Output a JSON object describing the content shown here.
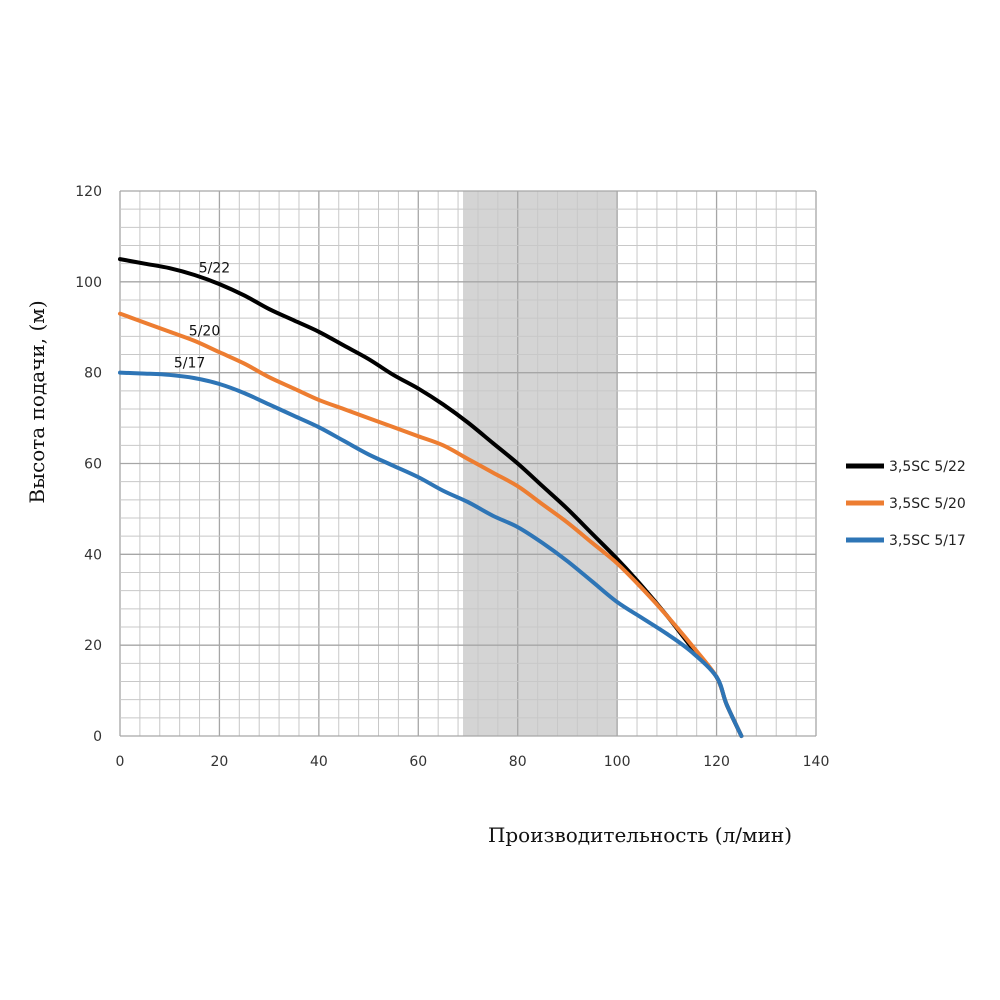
{
  "chart_data": {
    "type": "line",
    "xlabel": "Производительность (л/мин)",
    "ylabel": "Высота подачи, (м)",
    "xlim": [
      0,
      140
    ],
    "ylim": [
      0,
      120
    ],
    "x_major_step": 20,
    "y_major_step": 20,
    "x_minor_step": 4,
    "y_minor_step": 4,
    "xticks": [
      "0",
      "20",
      "40",
      "60",
      "80",
      "100",
      "120",
      "140"
    ],
    "yticks": [
      "0",
      "20",
      "40",
      "60",
      "80",
      "100",
      "120"
    ],
    "grid": true,
    "legend_position": "right",
    "highlight_band": [
      69,
      100
    ],
    "series": [
      {
        "name": "3,5SC 5/22",
        "label": "5/22",
        "color": "#000000",
        "points": [
          [
            0,
            105
          ],
          [
            5,
            104
          ],
          [
            10,
            103
          ],
          [
            15,
            101.5
          ],
          [
            20,
            99.5
          ],
          [
            25,
            97
          ],
          [
            30,
            94
          ],
          [
            35,
            91.5
          ],
          [
            40,
            89
          ],
          [
            45,
            86
          ],
          [
            50,
            83
          ],
          [
            55,
            79.5
          ],
          [
            60,
            76.5
          ],
          [
            65,
            73
          ],
          [
            70,
            69
          ],
          [
            75,
            64.5
          ],
          [
            80,
            60
          ],
          [
            85,
            55
          ],
          [
            90,
            50
          ],
          [
            95,
            44.5
          ],
          [
            100,
            39
          ],
          [
            105,
            33
          ],
          [
            110,
            26.5
          ],
          [
            115,
            19.5
          ],
          [
            120,
            13
          ],
          [
            122,
            7
          ],
          [
            125,
            0
          ]
        ]
      },
      {
        "name": "3,5SC 5/20",
        "label": "5/20",
        "color": "#ED7D31",
        "points": [
          [
            0,
            93
          ],
          [
            5,
            91
          ],
          [
            10,
            89
          ],
          [
            15,
            87
          ],
          [
            20,
            84.5
          ],
          [
            25,
            82
          ],
          [
            30,
            79
          ],
          [
            35,
            76.5
          ],
          [
            40,
            74
          ],
          [
            45,
            72
          ],
          [
            50,
            70
          ],
          [
            55,
            68
          ],
          [
            60,
            66
          ],
          [
            65,
            64
          ],
          [
            70,
            61
          ],
          [
            75,
            58
          ],
          [
            80,
            55
          ],
          [
            85,
            51
          ],
          [
            90,
            47
          ],
          [
            95,
            42.5
          ],
          [
            100,
            38
          ],
          [
            105,
            32.5
          ],
          [
            110,
            26.5
          ],
          [
            115,
            20
          ],
          [
            120,
            13
          ],
          [
            122,
            7
          ],
          [
            125,
            0
          ]
        ]
      },
      {
        "name": "3,5SC 5/17",
        "label": "5/17",
        "color": "#2E75B6",
        "points": [
          [
            0,
            80
          ],
          [
            5,
            79.8
          ],
          [
            10,
            79.5
          ],
          [
            15,
            78.8
          ],
          [
            20,
            77.5
          ],
          [
            25,
            75.5
          ],
          [
            30,
            73
          ],
          [
            35,
            70.5
          ],
          [
            40,
            68
          ],
          [
            45,
            65
          ],
          [
            50,
            62
          ],
          [
            55,
            59.5
          ],
          [
            60,
            57
          ],
          [
            65,
            54
          ],
          [
            70,
            51.5
          ],
          [
            75,
            48.5
          ],
          [
            80,
            46
          ],
          [
            85,
            42.5
          ],
          [
            90,
            38.5
          ],
          [
            95,
            34
          ],
          [
            100,
            29.5
          ],
          [
            105,
            26
          ],
          [
            110,
            22.5
          ],
          [
            115,
            18.5
          ],
          [
            120,
            13
          ],
          [
            122,
            7
          ],
          [
            125,
            0
          ]
        ]
      }
    ]
  }
}
